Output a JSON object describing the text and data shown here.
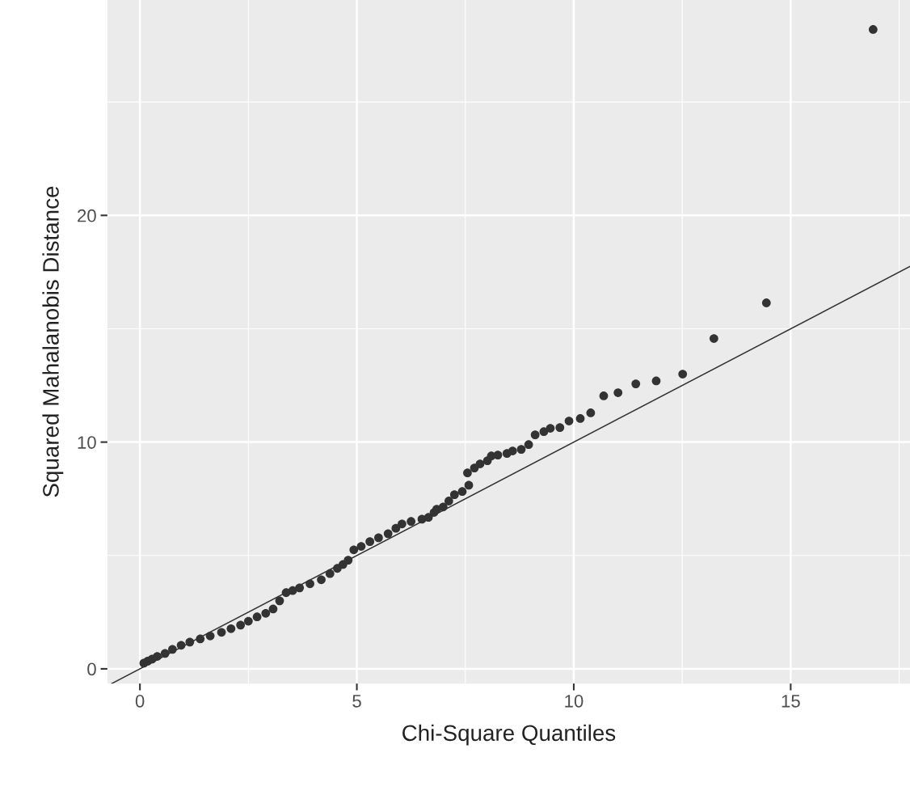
{
  "chart_data": {
    "type": "scatter",
    "xlabel": "Chi-Square Quantiles",
    "ylabel": "Squared Mahalanobis Distance",
    "xlim": [
      -0.75,
      17.75
    ],
    "ylim": [
      -0.65,
      29.5
    ],
    "xticks": [
      0,
      5,
      10,
      15
    ],
    "yticks": [
      0,
      10,
      20
    ],
    "grid": true,
    "series": [
      {
        "color": "#333333",
        "marker": "circle",
        "x": [
          0.09,
          0.18,
          0.28,
          0.4,
          0.58,
          0.75,
          0.95,
          1.15,
          1.39,
          1.62,
          1.88,
          2.1,
          2.32,
          2.5,
          2.7,
          2.9,
          3.07,
          3.22,
          3.37,
          3.52,
          3.68,
          3.92,
          4.18,
          4.38,
          4.55,
          4.68,
          4.8,
          4.93,
          5.1,
          5.3,
          5.5,
          5.72,
          5.9,
          6.04,
          6.25,
          6.5,
          6.65,
          6.78,
          6.84,
          6.99,
          7.12,
          7.25,
          7.43,
          7.58,
          7.55,
          7.71,
          7.84,
          8.01,
          8.1,
          8.25,
          8.46,
          8.59,
          8.79,
          8.96,
          9.11,
          9.31,
          9.46,
          9.68,
          9.89,
          10.15,
          10.39,
          10.69,
          11.02,
          11.43,
          11.9,
          12.51,
          13.23,
          14.44,
          16.9
        ],
        "values": [
          0.25,
          0.34,
          0.43,
          0.55,
          0.68,
          0.86,
          1.04,
          1.18,
          1.32,
          1.45,
          1.61,
          1.77,
          1.93,
          2.1,
          2.29,
          2.45,
          2.64,
          3.0,
          3.36,
          3.45,
          3.57,
          3.75,
          3.93,
          4.2,
          4.43,
          4.6,
          4.79,
          5.25,
          5.4,
          5.61,
          5.78,
          5.96,
          6.2,
          6.39,
          6.5,
          6.6,
          6.68,
          6.9,
          7.04,
          7.14,
          7.4,
          7.68,
          7.82,
          8.1,
          8.64,
          8.86,
          9.04,
          9.18,
          9.39,
          9.43,
          9.5,
          9.61,
          9.68,
          9.89,
          10.32,
          10.46,
          10.61,
          10.64,
          10.93,
          11.04,
          11.29,
          12.04,
          12.18,
          12.57,
          12.7,
          13.0,
          14.57,
          16.14,
          28.2
        ]
      },
      {
        "type": "line",
        "color": "#333333",
        "x": [
          -0.65,
          17.75
        ],
        "values": [
          -0.65,
          17.75
        ]
      }
    ]
  }
}
